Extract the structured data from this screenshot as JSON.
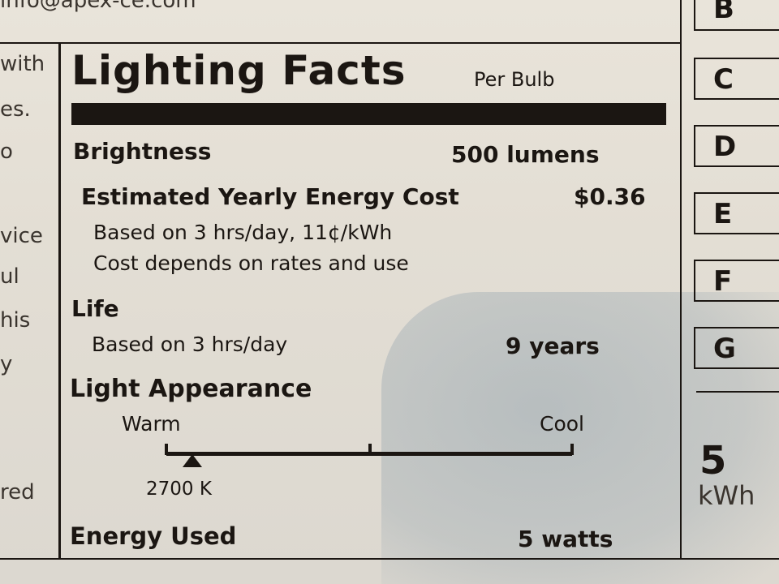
{
  "top_text": "info@apex-ce.com",
  "left_fragments": [
    "with",
    "es.",
    "o",
    "vice",
    "ul",
    "his",
    "y",
    "red"
  ],
  "label": {
    "title": "Lighting Facts",
    "subtitle": "Per Bulb",
    "brightness": {
      "label": "Brightness",
      "value": "500 lumens"
    },
    "cost": {
      "label": "Estimated Yearly Energy Cost",
      "value": "$0.36",
      "note1": "Based on 3 hrs/day, 11¢/kWh",
      "note2": "Cost depends on rates and use"
    },
    "life": {
      "label": "Life",
      "note": "Based on 3 hrs/day",
      "value": "9 years"
    },
    "appearance": {
      "label": "Light Appearance",
      "warm": "Warm",
      "cool": "Cool",
      "value": "2700 K",
      "scale_min_k": 2700,
      "scale_max_k": 6500
    },
    "energy": {
      "label": "Energy Used",
      "value": "5 watts"
    }
  },
  "rating_letters": [
    "B",
    "C",
    "D",
    "E",
    "F",
    "G"
  ],
  "energy_side": {
    "value": "5",
    "unit": "kWh"
  }
}
